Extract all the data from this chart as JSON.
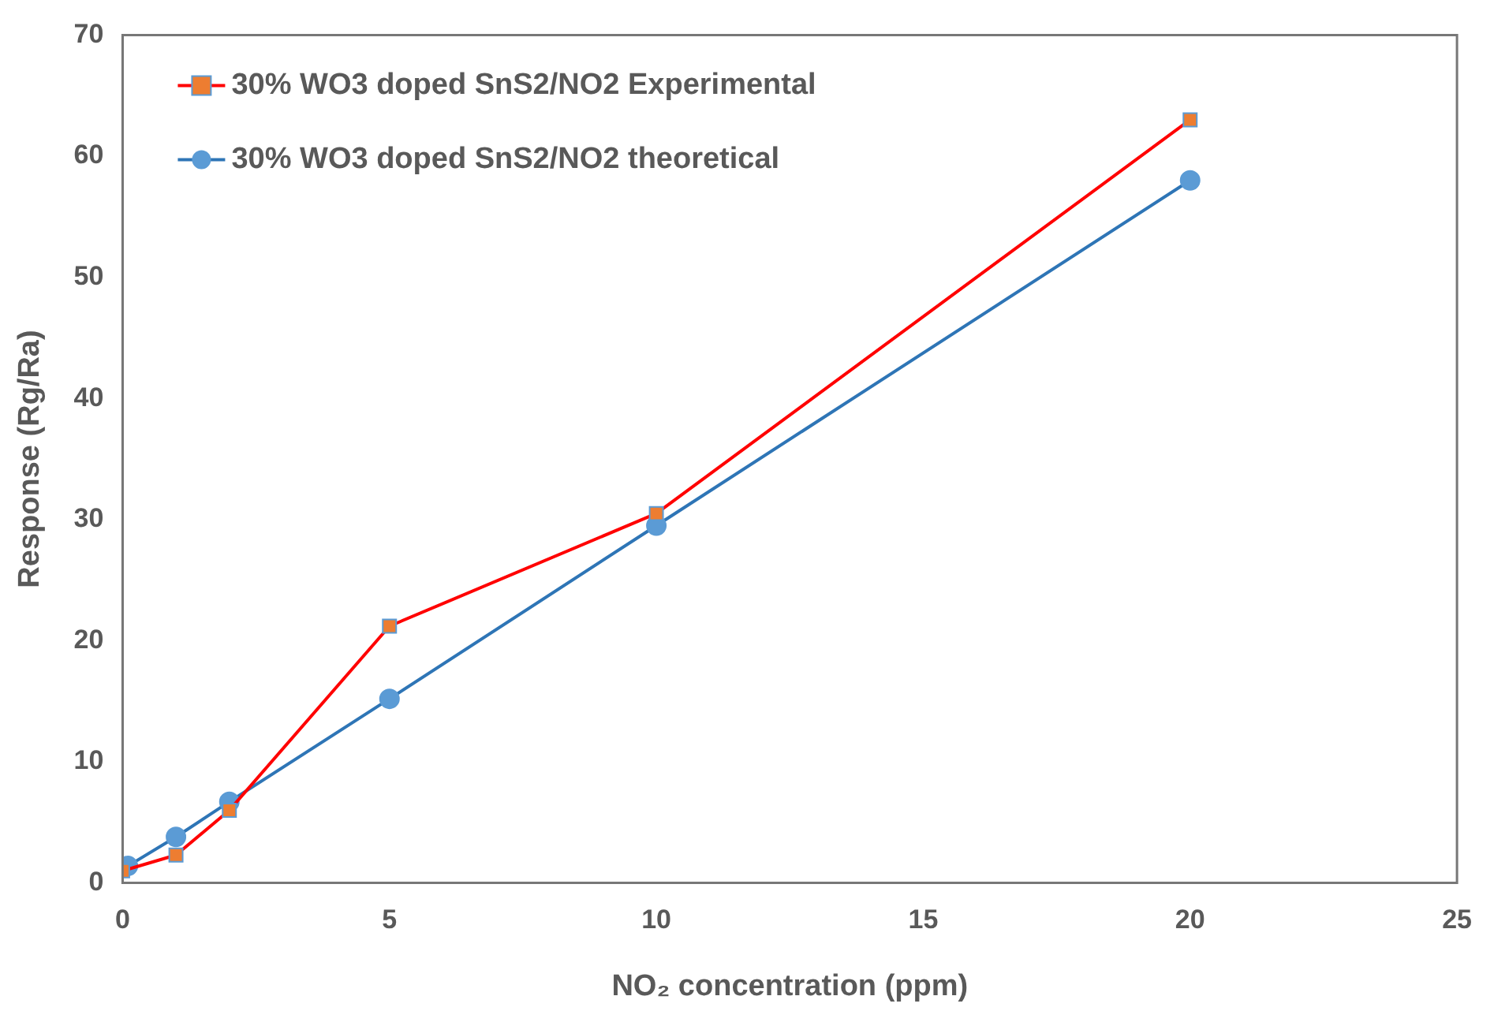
{
  "chart_data": {
    "type": "line",
    "xlabel": "NO₂ concentration (ppm)",
    "ylabel": "Response (Rg/Ra)",
    "xlim": [
      0,
      25
    ],
    "xticks": [
      0,
      5,
      10,
      15,
      20,
      25
    ],
    "ylim": [
      0,
      70
    ],
    "yticks": [
      0,
      10,
      20,
      30,
      40,
      50,
      60,
      70
    ],
    "grid": false,
    "legend": "top left",
    "line_style": "solid",
    "series": [
      {
        "name": "30% WO3 doped SnS2/NO2 Experimental",
        "color": "#ff0000",
        "marker": "square",
        "colors": [
          "#ed7d31",
          "#ed7d31",
          "#ed7d31",
          "#ed7d31",
          "#ed7d31",
          "#ed7d31"
        ],
        "x": [
          0,
          1,
          2,
          5,
          10,
          20
        ],
        "values": [
          1.0,
          2.3,
          6.0,
          21.2,
          30.5,
          63
        ]
      },
      {
        "name": "30% WO3 doped SnS2/NO2 theoretical",
        "color": "#2e75b6",
        "marker": "circle",
        "colors": [
          "#5b9bd5",
          "#5b9bd5",
          "#5b9bd5",
          "#5b9bd5",
          "#5b9bd5",
          "#5b9bd5"
        ],
        "x": [
          0.1,
          1,
          2,
          5,
          10,
          20
        ],
        "values": [
          1.4,
          3.8,
          6.7,
          15.2,
          29.5,
          58
        ]
      }
    ]
  }
}
